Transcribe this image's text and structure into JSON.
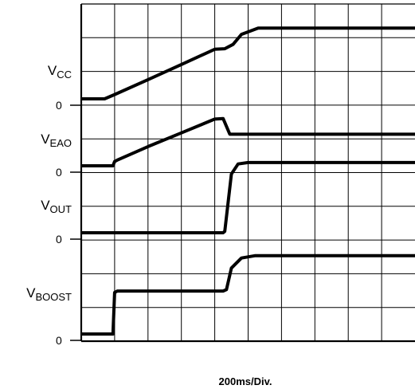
{
  "chart_data": {
    "type": "line",
    "title": "",
    "xlabel": "200ms/Div.",
    "ylabel": "",
    "grid": true,
    "x_divisions": 10,
    "y_divisions": 10,
    "time_per_division_ms": 200,
    "series": [
      {
        "name": "VCC",
        "label_main": "V",
        "label_sub": "CC",
        "zero_label": "0",
        "points": [
          [
            0,
            0.15
          ],
          [
            0.7,
            0.15
          ],
          [
            1.0,
            0.3
          ],
          [
            2.0,
            0.82
          ],
          [
            3.0,
            1.35
          ],
          [
            4.0,
            1.88
          ],
          [
            4.3,
            1.9
          ],
          [
            4.55,
            2.05
          ],
          [
            4.8,
            2.4
          ],
          [
            5.3,
            2.62
          ],
          [
            6.0,
            2.62
          ],
          [
            8.0,
            2.62
          ],
          [
            10.0,
            2.62
          ]
        ]
      },
      {
        "name": "VEAO",
        "label_main": "V",
        "label_sub": "EAO",
        "zero_label": "0",
        "points": [
          [
            0,
            0.15
          ],
          [
            0.95,
            0.15
          ],
          [
            1.0,
            0.3
          ],
          [
            1.1,
            0.36
          ],
          [
            2.0,
            0.82
          ],
          [
            3.0,
            1.3
          ],
          [
            4.0,
            1.78
          ],
          [
            4.25,
            1.8
          ],
          [
            4.45,
            1.25
          ],
          [
            6.0,
            1.25
          ],
          [
            8.0,
            1.25
          ],
          [
            10.0,
            1.25
          ]
        ]
      },
      {
        "name": "VOUT",
        "label_main": "V",
        "label_sub": "OUT",
        "zero_label": "0",
        "points": [
          [
            0,
            0.15
          ],
          [
            4.25,
            0.15
          ],
          [
            4.3,
            0.2
          ],
          [
            4.5,
            2.2
          ],
          [
            4.7,
            2.55
          ],
          [
            5.0,
            2.6
          ],
          [
            10.0,
            2.6
          ]
        ]
      },
      {
        "name": "VBOOST",
        "label_main": "V",
        "label_sub": "BOOST",
        "zero_label": "0",
        "points": [
          [
            0,
            0.15
          ],
          [
            0.95,
            0.15
          ],
          [
            1.0,
            1.6
          ],
          [
            1.08,
            1.65
          ],
          [
            4.25,
            1.65
          ],
          [
            4.35,
            1.7
          ],
          [
            4.5,
            2.45
          ],
          [
            4.8,
            2.8
          ],
          [
            5.2,
            2.88
          ],
          [
            10.0,
            2.88
          ]
        ]
      }
    ]
  }
}
